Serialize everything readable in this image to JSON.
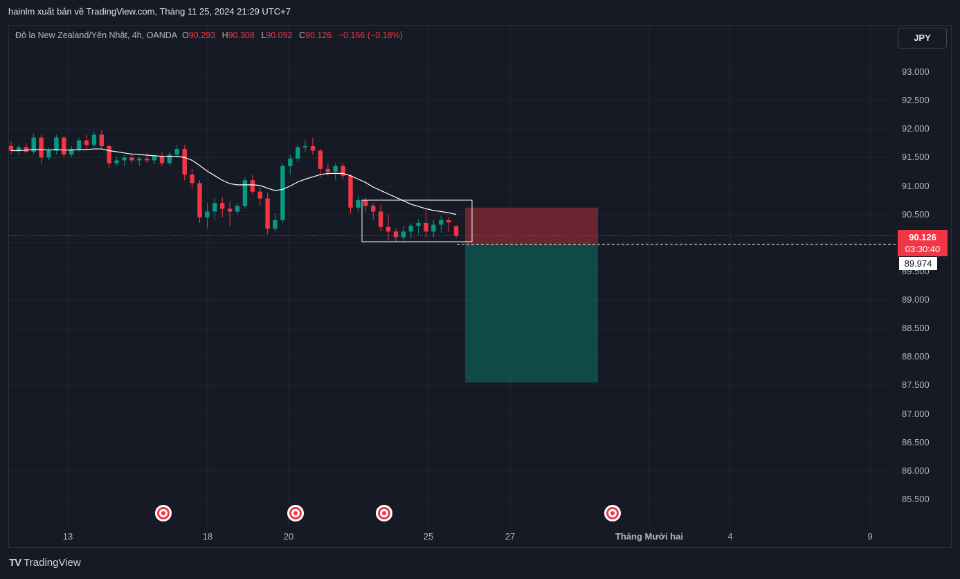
{
  "header": {
    "publish_line": "hainlm xuất bản về TradingView.com, Tháng 11 25, 2024 21:29 UTC+7"
  },
  "legend": {
    "symbol_line": "Đô la New Zealand/Yên Nhật, 4h, OANDA",
    "o_label": "O",
    "o_value": "90.293",
    "h_label": "H",
    "h_value": "90.308",
    "l_label": "L",
    "l_value": "90.092",
    "c_label": "C",
    "c_value": "90.126",
    "change": "−0.166 (−0.18%)"
  },
  "currency_button": "JPY",
  "price_tag": {
    "price": "90.126",
    "countdown": "03:30:40"
  },
  "entry_tag": "89.974",
  "footer": {
    "brand": "TradingView",
    "logo_glyph": "TV"
  },
  "colors": {
    "up": "#089981",
    "down": "#f23645",
    "ma": "#ffffff",
    "background": "#161a25"
  },
  "icons": [
    "tradingview-logo-icon",
    "economic-event-icon"
  ],
  "chart_data": {
    "type": "candlestick",
    "symbol": "NZDJPY",
    "timeframe": "4h",
    "y_ticks": [
      "93.000",
      "92.500",
      "92.000",
      "91.500",
      "91.000",
      "90.500",
      "89.500",
      "89.000",
      "88.500",
      "88.000",
      "87.500",
      "87.000",
      "86.500",
      "86.000",
      "85.500"
    ],
    "x_ticks": [
      "13",
      "18",
      "20",
      "25",
      "27",
      "Tháng Mười hai",
      "4",
      "9"
    ],
    "ylim": [
      85.0,
      93.4
    ],
    "grid": true,
    "position": {
      "entry": 89.974,
      "stop": 90.62,
      "target": 87.55
    },
    "candles": [
      [
        91.7,
        91.78,
        91.55,
        91.62
      ],
      [
        91.62,
        91.72,
        91.55,
        91.68
      ],
      [
        91.68,
        91.75,
        91.58,
        91.6
      ],
      [
        91.6,
        91.92,
        91.55,
        91.85
      ],
      [
        91.85,
        91.9,
        91.4,
        91.5
      ],
      [
        91.5,
        91.68,
        91.45,
        91.62
      ],
      [
        91.62,
        91.9,
        91.55,
        91.85
      ],
      [
        91.85,
        91.88,
        91.5,
        91.55
      ],
      [
        91.55,
        91.7,
        91.5,
        91.65
      ],
      [
        91.65,
        91.85,
        91.6,
        91.8
      ],
      [
        91.8,
        91.9,
        91.65,
        91.72
      ],
      [
        91.72,
        91.95,
        91.68,
        91.9
      ],
      [
        91.9,
        91.98,
        91.65,
        91.7
      ],
      [
        91.7,
        91.72,
        91.3,
        91.4
      ],
      [
        91.4,
        91.5,
        91.35,
        91.45
      ],
      [
        91.45,
        91.55,
        91.35,
        91.5
      ],
      [
        91.5,
        91.58,
        91.4,
        91.45
      ],
      [
        91.45,
        91.52,
        91.35,
        91.48
      ],
      [
        91.48,
        91.58,
        91.4,
        91.45
      ],
      [
        91.45,
        91.55,
        91.38,
        91.52
      ],
      [
        91.52,
        91.6,
        91.35,
        91.4
      ],
      [
        91.4,
        91.6,
        91.35,
        91.55
      ],
      [
        91.55,
        91.72,
        91.5,
        91.65
      ],
      [
        91.65,
        91.72,
        91.1,
        91.2
      ],
      [
        91.2,
        91.3,
        90.95,
        91.05
      ],
      [
        91.05,
        91.1,
        90.35,
        90.45
      ],
      [
        90.45,
        90.7,
        90.25,
        90.55
      ],
      [
        90.55,
        90.78,
        90.4,
        90.7
      ],
      [
        90.7,
        90.8,
        90.45,
        90.6
      ],
      [
        90.6,
        90.72,
        90.3,
        90.55
      ],
      [
        90.55,
        90.7,
        90.5,
        90.65
      ],
      [
        90.65,
        91.15,
        90.6,
        91.1
      ],
      [
        91.1,
        91.2,
        90.85,
        90.9
      ],
      [
        90.9,
        90.98,
        90.65,
        90.78
      ],
      [
        90.78,
        90.88,
        90.15,
        90.25
      ],
      [
        90.25,
        90.52,
        90.2,
        90.4
      ],
      [
        90.4,
        91.4,
        90.35,
        91.35
      ],
      [
        91.35,
        91.55,
        91.2,
        91.48
      ],
      [
        91.48,
        91.72,
        91.42,
        91.68
      ],
      [
        91.68,
        91.8,
        91.6,
        91.7
      ],
      [
        91.7,
        91.85,
        91.55,
        91.62
      ],
      [
        91.62,
        91.65,
        91.15,
        91.3
      ],
      [
        91.3,
        91.4,
        91.18,
        91.25
      ],
      [
        91.25,
        91.4,
        91.1,
        91.35
      ],
      [
        91.35,
        91.4,
        91.12,
        91.18
      ],
      [
        91.18,
        91.2,
        90.52,
        90.62
      ],
      [
        90.62,
        90.82,
        90.55,
        90.75
      ],
      [
        90.75,
        90.8,
        90.55,
        90.65
      ],
      [
        90.65,
        90.7,
        90.4,
        90.55
      ],
      [
        90.55,
        90.68,
        90.2,
        90.28
      ],
      [
        90.28,
        90.5,
        90.05,
        90.2
      ],
      [
        90.2,
        90.25,
        90.02,
        90.1
      ],
      [
        90.1,
        90.3,
        90.0,
        90.2
      ],
      [
        90.2,
        90.35,
        90.08,
        90.3
      ],
      [
        90.3,
        90.42,
        90.15,
        90.35
      ],
      [
        90.35,
        90.6,
        90.1,
        90.2
      ],
      [
        90.2,
        90.4,
        90.1,
        90.32
      ],
      [
        90.32,
        90.48,
        90.18,
        90.4
      ],
      [
        90.4,
        90.45,
        90.2,
        90.36
      ],
      [
        90.293,
        90.308,
        90.092,
        90.126
      ]
    ],
    "ma": [
      91.62,
      91.62,
      91.63,
      91.64,
      91.64,
      91.63,
      91.64,
      91.63,
      91.63,
      91.64,
      91.64,
      91.65,
      91.65,
      91.62,
      91.6,
      91.58,
      91.56,
      91.55,
      91.54,
      91.53,
      91.52,
      91.52,
      91.52,
      91.5,
      91.45,
      91.36,
      91.26,
      91.18,
      91.1,
      91.04,
      91.02,
      91.02,
      91.02,
      91.01,
      90.96,
      90.92,
      90.94,
      91.0,
      91.07,
      91.12,
      91.16,
      91.2,
      91.22,
      91.22,
      91.22,
      91.18,
      91.12,
      91.06,
      90.98,
      90.92,
      90.86,
      90.8,
      90.74,
      90.68,
      90.64,
      90.6,
      90.57,
      90.55,
      90.53,
      90.5
    ]
  }
}
